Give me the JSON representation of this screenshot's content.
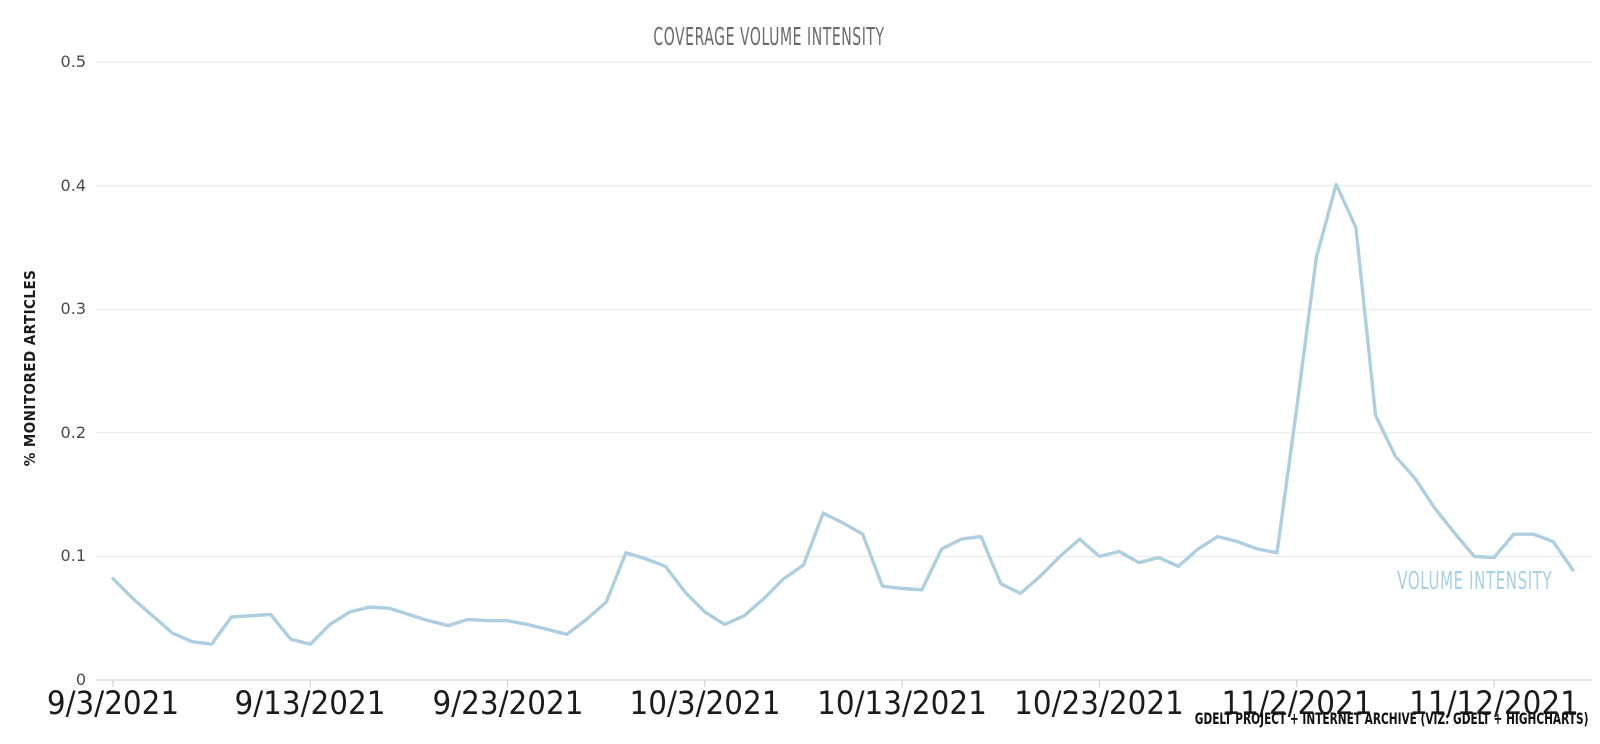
{
  "colors": {
    "background": "#ffffff",
    "line": "#aecfe0",
    "series_label_text": "#a9cfe2",
    "title_text": "#6a6a6a",
    "grid_line": "#e7e7e7",
    "axis_line": "#cccccc",
    "tick_mark": "#c9c9c9",
    "x_tick_text": "#1b1b1b",
    "y_tick_text": "#4a4a4a",
    "credits_text": "#111111"
  },
  "chart_data": {
    "type": "line",
    "title": "Coverage Volume Intensity",
    "xlabel": "",
    "ylabel": "% MONITORED ARTICLES",
    "ylim": [
      0,
      0.5
    ],
    "grid": "horizontal",
    "legend_position": "label-at-line-end",
    "y_tick_labels": [
      "0",
      "0.1",
      "0.2",
      "0.3",
      "0.4",
      "0.5"
    ],
    "x_tick_labels": [
      "9/3/2021",
      "9/13/2021",
      "9/23/2021",
      "10/3/2021",
      "10/13/2021",
      "10/23/2021",
      "11/2/2021",
      "11/12/2021"
    ],
    "credits": "GDELT PROJECT + INTERNET ARCHIVE (VIZ: GDELT + HIGHCHARTS)",
    "categories": [
      "9/3/2021",
      "9/4/2021",
      "9/5/2021",
      "9/6/2021",
      "9/7/2021",
      "9/8/2021",
      "9/9/2021",
      "9/10/2021",
      "9/11/2021",
      "9/12/2021",
      "9/13/2021",
      "9/14/2021",
      "9/15/2021",
      "9/16/2021",
      "9/17/2021",
      "9/18/2021",
      "9/19/2021",
      "9/20/2021",
      "9/21/2021",
      "9/22/2021",
      "9/23/2021",
      "9/24/2021",
      "9/25/2021",
      "9/26/2021",
      "9/27/2021",
      "9/28/2021",
      "9/29/2021",
      "9/30/2021",
      "10/1/2021",
      "10/2/2021",
      "10/3/2021",
      "10/4/2021",
      "10/5/2021",
      "10/6/2021",
      "10/7/2021",
      "10/8/2021",
      "10/9/2021",
      "10/10/2021",
      "10/11/2021",
      "10/12/2021",
      "10/13/2021",
      "10/14/2021",
      "10/15/2021",
      "10/16/2021",
      "10/17/2021",
      "10/18/2021",
      "10/19/2021",
      "10/20/2021",
      "10/21/2021",
      "10/22/2021",
      "10/23/2021",
      "10/24/2021",
      "10/25/2021",
      "10/26/2021",
      "10/27/2021",
      "10/28/2021",
      "10/29/2021",
      "10/30/2021",
      "10/31/2021",
      "11/1/2021",
      "11/2/2021",
      "11/3/2021",
      "11/4/2021",
      "11/5/2021",
      "11/6/2021",
      "11/7/2021",
      "11/8/2021",
      "11/9/2021",
      "11/10/2021",
      "11/11/2021",
      "11/12/2021",
      "11/13/2021",
      "11/14/2021",
      "11/15/2021",
      "11/16/2021"
    ],
    "series": [
      {
        "name": "Volume Intensity",
        "color": "#aecfe0",
        "values": [
          0.082,
          0.066,
          0.052,
          0.038,
          0.031,
          0.029,
          0.051,
          0.052,
          0.053,
          0.033,
          0.029,
          0.045,
          0.055,
          0.059,
          0.058,
          0.053,
          0.048,
          0.044,
          0.049,
          0.048,
          0.048,
          0.045,
          0.041,
          0.037,
          0.049,
          0.063,
          0.103,
          0.098,
          0.092,
          0.071,
          0.055,
          0.045,
          0.052,
          0.066,
          0.082,
          0.093,
          0.135,
          0.127,
          0.118,
          0.076,
          0.074,
          0.073,
          0.106,
          0.114,
          0.116,
          0.078,
          0.07,
          0.084,
          0.1,
          0.114,
          0.1,
          0.104,
          0.095,
          0.099,
          0.092,
          0.106,
          0.116,
          0.112,
          0.106,
          0.103,
          0.22,
          0.342,
          0.401,
          0.366,
          0.214,
          0.181,
          0.163,
          0.139,
          0.119,
          0.1,
          0.099,
          0.118,
          0.118,
          0.112,
          0.089
        ]
      }
    ]
  }
}
